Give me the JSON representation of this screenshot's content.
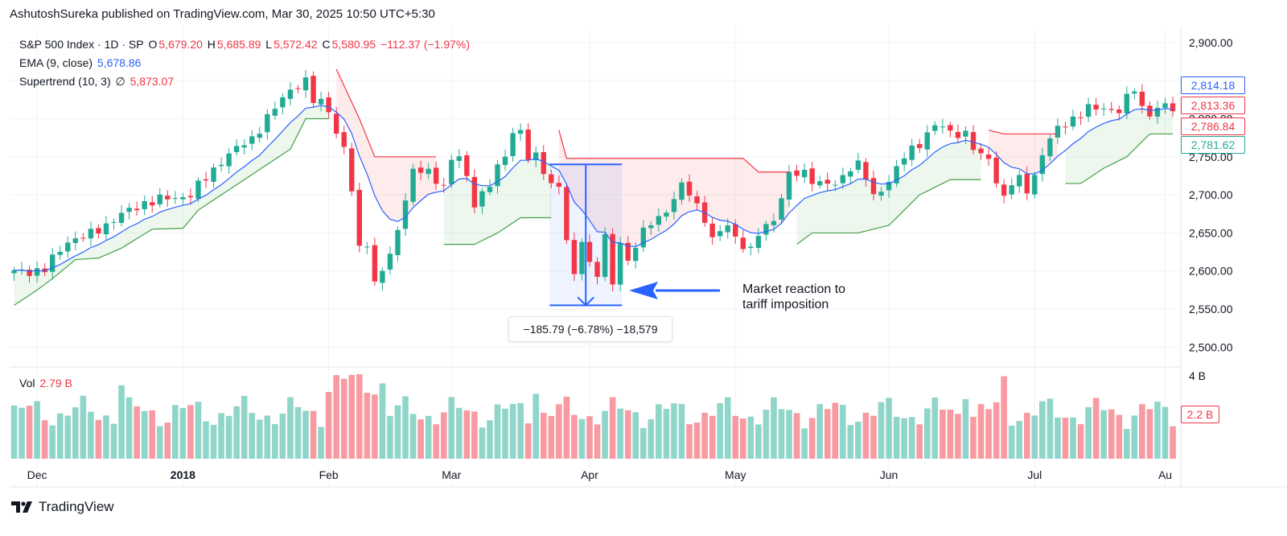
{
  "publish_line": "AshutoshSureka published on TradingView.com, Mar 30, 2025 10:50 UTC+5:30",
  "legend": {
    "symbol": "S&P 500 Index · 1D · SP",
    "o_label": "O",
    "o_value": "5,679.20",
    "h_label": "H",
    "h_value": "5,685.89",
    "l_label": "L",
    "l_value": "5,572.42",
    "c_label": "C",
    "c_value": "5,580.95",
    "change": "−112.37 (−1.97%)",
    "ema_label": "EMA (9, close)",
    "ema_value": "5,678.86",
    "st_label": "Supertrend (10, 3)",
    "st_symbol": "∅",
    "st_value": "5,873.07",
    "vol_label": "Vol",
    "vol_value": "2.79 B"
  },
  "price_tags": [
    {
      "text": "2,814.18",
      "color": "#2962ff",
      "value": 2814.18
    },
    {
      "text": "2,813.36",
      "color": "#f23645",
      "value": 2813.36
    },
    {
      "text": "2,786.84",
      "color": "#f23645",
      "value": 2786.84
    },
    {
      "text": "2,781.62",
      "color": "#22ab94",
      "value": 2781.62
    }
  ],
  "volume_tag": {
    "text": "2.2 B",
    "color": "#f23645"
  },
  "measure_label": "−185.79 (−6.78%) −18,579",
  "annotation": {
    "line1": "Market reaction to",
    "line2": "tariff imposition"
  },
  "footer": {
    "brand": "TradingView"
  },
  "colors": {
    "up": "#22ab94",
    "down": "#f23645",
    "ema": "#2962ff",
    "st_up": "#43a047",
    "st_down": "#f23645",
    "measure": "#2962ff"
  },
  "chart_data": {
    "type": "candlestick",
    "y_ticks": [
      "2,900.00",
      "2,850.00",
      "2,800.00",
      "2,750.00",
      "2,700.00",
      "2,650.00",
      "2,600.00",
      "2,550.00",
      "2,500.00"
    ],
    "y_tick_values": [
      2900,
      2850,
      2800,
      2750,
      2700,
      2650,
      2600,
      2550,
      2500
    ],
    "ylim": [
      2475,
      2920
    ],
    "volume_axis_label": "4 B",
    "x_labels": [
      {
        "text": "Dec",
        "index": 3
      },
      {
        "text": "2018",
        "index": 22
      },
      {
        "text": "Feb",
        "index": 41
      },
      {
        "text": "Mar",
        "index": 57
      },
      {
        "text": "Apr",
        "index": 75
      },
      {
        "text": "May",
        "index": 94
      },
      {
        "text": "Jun",
        "index": 114
      },
      {
        "text": "Jul",
        "index": 133
      },
      {
        "text": "Au",
        "index": 150
      }
    ],
    "x_count": 152,
    "grid": true,
    "measure": {
      "start_index": 70,
      "end_index": 79,
      "from": 2740,
      "to": 2555
    },
    "anchors_close": [
      [
        0,
        2598
      ],
      [
        4,
        2602
      ],
      [
        7,
        2640
      ],
      [
        10,
        2648
      ],
      [
        13,
        2668
      ],
      [
        17,
        2690
      ],
      [
        20,
        2695
      ],
      [
        23,
        2700
      ],
      [
        27,
        2745
      ],
      [
        31,
        2775
      ],
      [
        33,
        2800
      ],
      [
        36,
        2840
      ],
      [
        38,
        2848
      ],
      [
        39,
        2823
      ],
      [
        40,
        2822
      ],
      [
        41,
        2815
      ],
      [
        42,
        2780
      ],
      [
        43,
        2760
      ],
      [
        44,
        2705
      ],
      [
        45,
        2630
      ],
      [
        46,
        2640
      ],
      [
        47,
        2582
      ],
      [
        48,
        2601
      ],
      [
        49,
        2619
      ],
      [
        50,
        2655
      ],
      [
        51,
        2698
      ],
      [
        52,
        2730
      ],
      [
        53,
        2731
      ],
      [
        54,
        2728
      ],
      [
        56,
        2713
      ],
      [
        57,
        2745
      ],
      [
        58,
        2750
      ],
      [
        59,
        2720
      ],
      [
        60,
        2691
      ],
      [
        62,
        2713
      ],
      [
        63,
        2735
      ],
      [
        64,
        2750
      ],
      [
        65,
        2786
      ],
      [
        66,
        2783
      ],
      [
        67,
        2749
      ],
      [
        68,
        2748
      ],
      [
        70,
        2716
      ],
      [
        71,
        2712
      ],
      [
        72,
        2640
      ],
      [
        73,
        2590
      ],
      [
        74,
        2644
      ],
      [
        75,
        2610
      ],
      [
        76,
        2597
      ],
      [
        77,
        2643
      ],
      [
        78,
        2581
      ],
      [
        79,
        2640
      ],
      [
        80,
        2613
      ],
      [
        81,
        2635
      ],
      [
        83,
        2663
      ],
      [
        85,
        2680
      ],
      [
        87,
        2710
      ],
      [
        88,
        2703
      ],
      [
        90,
        2670
      ],
      [
        91,
        2640
      ],
      [
        93,
        2661
      ],
      [
        94,
        2645
      ],
      [
        96,
        2625
      ],
      [
        97,
        2648
      ],
      [
        99,
        2670
      ],
      [
        101,
        2725
      ],
      [
        103,
        2729
      ],
      [
        105,
        2715
      ],
      [
        107,
        2712
      ],
      [
        109,
        2738
      ],
      [
        110,
        2740
      ],
      [
        111,
        2722
      ],
      [
        112,
        2696
      ],
      [
        114,
        2720
      ],
      [
        116,
        2749
      ],
      [
        118,
        2769
      ],
      [
        120,
        2792
      ],
      [
        122,
        2782
      ],
      [
        124,
        2781
      ],
      [
        125,
        2762
      ],
      [
        126,
        2748
      ],
      [
        127,
        2750
      ],
      [
        128,
        2718
      ],
      [
        129,
        2698
      ],
      [
        130,
        2714
      ],
      [
        131,
        2719
      ],
      [
        132,
        2708
      ],
      [
        133,
        2725
      ],
      [
        134,
        2755
      ],
      [
        136,
        2787
      ],
      [
        138,
        2801
      ],
      [
        140,
        2812
      ],
      [
        142,
        2815
      ],
      [
        144,
        2810
      ],
      [
        146,
        2840
      ],
      [
        147,
        2815
      ],
      [
        148,
        2808
      ],
      [
        149,
        2812
      ],
      [
        150,
        2816
      ],
      [
        151,
        2813
      ]
    ],
    "supertrend_segments": [
      {
        "dir": "up",
        "points": [
          [
            0,
            2555
          ],
          [
            3,
            2575
          ],
          [
            5,
            2590
          ],
          [
            8,
            2615
          ],
          [
            11,
            2617
          ],
          [
            14,
            2630
          ],
          [
            18,
            2655
          ],
          [
            22,
            2656
          ],
          [
            24,
            2680
          ],
          [
            27,
            2700
          ],
          [
            30,
            2720
          ],
          [
            33,
            2740
          ],
          [
            36,
            2760
          ],
          [
            38,
            2800
          ],
          [
            41,
            2800
          ]
        ]
      },
      {
        "dir": "down",
        "points": [
          [
            42,
            2865
          ],
          [
            45,
            2800
          ],
          [
            47,
            2750
          ],
          [
            55,
            2750
          ]
        ]
      },
      {
        "dir": "up",
        "points": [
          [
            56,
            2635
          ],
          [
            60,
            2635
          ],
          [
            63,
            2650
          ],
          [
            66,
            2670
          ],
          [
            70,
            2670
          ]
        ]
      },
      {
        "dir": "down",
        "points": [
          [
            71,
            2785
          ],
          [
            72,
            2748
          ],
          [
            95,
            2748
          ],
          [
            97,
            2730
          ],
          [
            101,
            2730
          ]
        ]
      },
      {
        "dir": "up",
        "points": [
          [
            102,
            2635
          ],
          [
            104,
            2650
          ],
          [
            110,
            2650
          ],
          [
            114,
            2660
          ],
          [
            118,
            2700
          ],
          [
            122,
            2720
          ],
          [
            126,
            2720
          ]
        ]
      },
      {
        "dir": "down",
        "points": [
          [
            127,
            2785
          ],
          [
            129,
            2780
          ],
          [
            136,
            2780
          ]
        ]
      },
      {
        "dir": "up",
        "points": [
          [
            137,
            2715
          ],
          [
            139,
            2715
          ],
          [
            142,
            2735
          ],
          [
            145,
            2750
          ],
          [
            148,
            2780
          ],
          [
            151,
            2780
          ]
        ]
      }
    ]
  }
}
